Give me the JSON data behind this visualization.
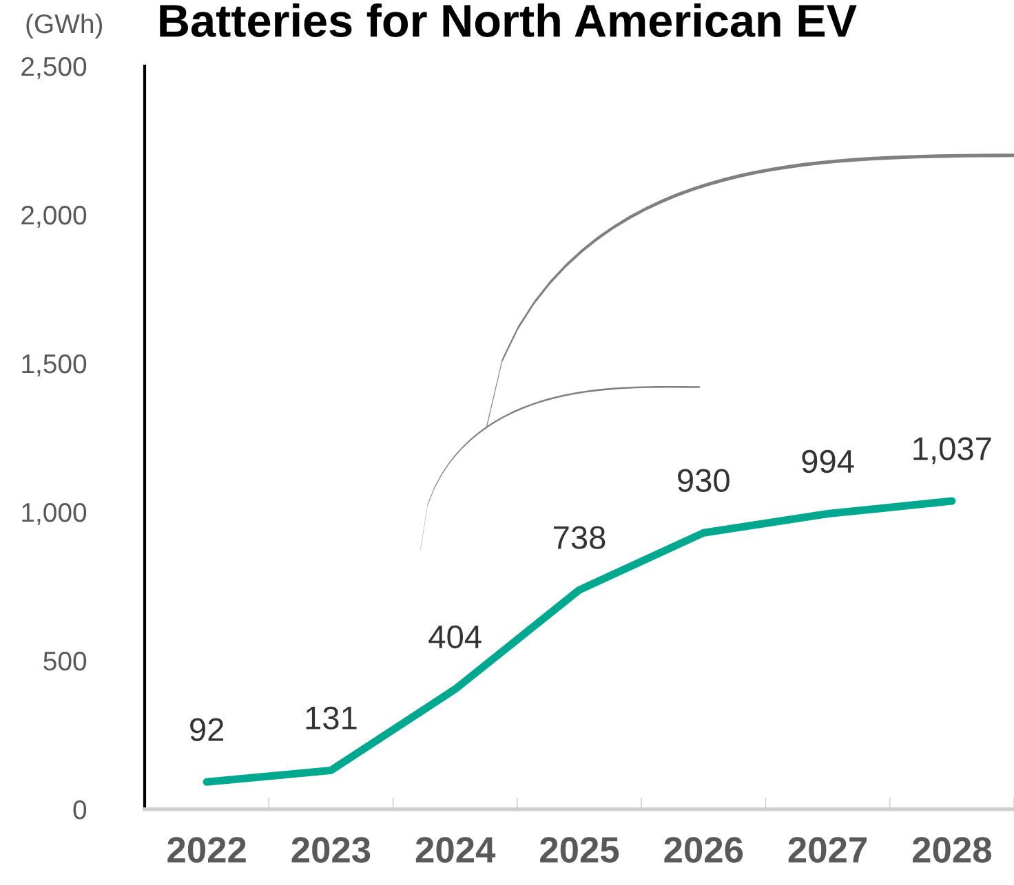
{
  "chart_data": {
    "type": "line",
    "title": "Batteries for North American EV",
    "ylabel": "(GWh)",
    "categories": [
      "2022",
      "2023",
      "2024",
      "2025",
      "2026",
      "2027",
      "2028"
    ],
    "series": [
      {
        "color": "#00a88f",
        "values": [
          92,
          131,
          404,
          738,
          930,
          994,
          1037
        ]
      }
    ],
    "ylim": [
      0,
      2500
    ],
    "yticks": [
      {
        "value": 0,
        "label": "0"
      },
      {
        "value": 500,
        "label": "500"
      },
      {
        "value": 1000,
        "label": "1,000"
      },
      {
        "value": 1500,
        "label": "1,500"
      },
      {
        "value": 2000,
        "label": "2,000"
      },
      {
        "value": 2500,
        "label": "2,500"
      }
    ],
    "value_labels": [
      "92",
      "131",
      "404",
      "738",
      "930",
      "994",
      "1,037"
    ],
    "grid": false,
    "legend": false,
    "marker": "none",
    "line_style": "solid"
  }
}
